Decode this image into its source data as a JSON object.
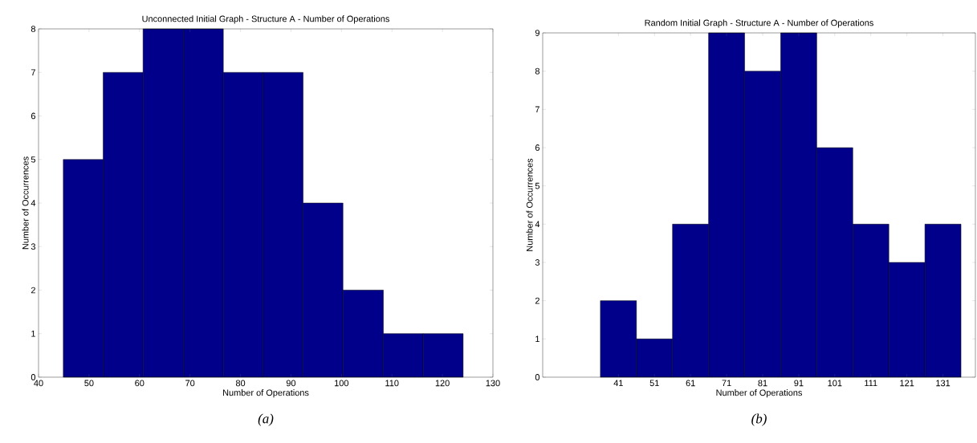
{
  "chart_data": [
    {
      "type": "histogram",
      "title": "Unconnected Initial Graph - Structure A - Number of Operations",
      "xlabel": "Number of Operations",
      "ylabel": "Number of Occurrences",
      "bins": [
        44.9,
        52.8,
        60.7,
        68.7,
        76.6,
        84.5,
        92.4,
        100.3,
        108.3,
        116.2,
        124.1
      ],
      "values": [
        5,
        7,
        8,
        8,
        7,
        7,
        4,
        2,
        1,
        1
      ],
      "color": "#00008b",
      "xlim": [
        40,
        130
      ],
      "xticks": [
        40,
        50,
        60,
        70,
        80,
        90,
        100,
        110,
        120,
        130
      ],
      "ylim": [
        0,
        8
      ],
      "yticks": [
        0,
        1,
        2,
        3,
        4,
        5,
        6,
        7,
        8
      ],
      "annotations": [
        "(a)"
      ]
    },
    {
      "type": "histogram",
      "title": "Random Initial Graph - Structure A - Number of Operations",
      "xlabel": "Number of Operations",
      "ylabel": "Number of Occurrences",
      "bins": [
        36,
        46,
        56,
        66,
        76,
        86,
        96,
        106,
        116,
        126,
        136
      ],
      "values": [
        2,
        1,
        4,
        9,
        8,
        9,
        6,
        4,
        3,
        4
      ],
      "color": "#00008b",
      "xlim": [
        20,
        140
      ],
      "xticks": [
        41,
        51,
        61,
        71,
        81,
        91,
        101,
        111,
        121,
        131
      ],
      "ylim": [
        0,
        9
      ],
      "yticks": [
        0,
        1,
        2,
        3,
        4,
        5,
        6,
        7,
        8,
        9
      ],
      "annotations": [
        "(b)"
      ]
    }
  ]
}
